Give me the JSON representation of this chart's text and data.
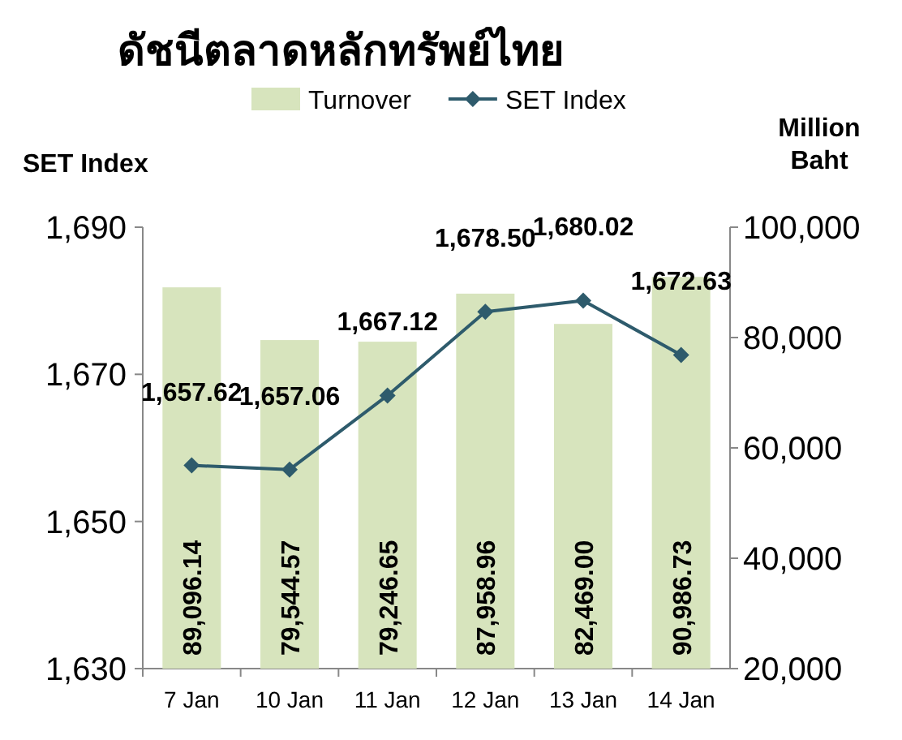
{
  "chart_data": {
    "type": "bar",
    "title": "ดัชนีตลาดหลักทรัพย์ไทย",
    "ylabel": "SET Index",
    "y2label": "Million Baht",
    "legend": "top",
    "grid": false,
    "categories": [
      "7 Jan",
      "10 Jan",
      "11 Jan",
      "12 Jan",
      "13 Jan",
      "14 Jan"
    ],
    "series": [
      {
        "name": "Turnover",
        "axis": "y2",
        "color": "#d7e4bd",
        "values": [
          89096.14,
          79544.57,
          79246.65,
          87958.96,
          82469.0,
          90986.73
        ],
        "value_labels": [
          "89,096.14",
          "79,544.57",
          "79,246.65",
          "87,958.96",
          "82,469.00",
          "90,986.73"
        ]
      },
      {
        "name": "SET Index",
        "type": "line",
        "axis": "y",
        "color": "#2e5b6c",
        "marker": "diamond",
        "values": [
          1657.62,
          1657.06,
          1667.12,
          1678.5,
          1680.02,
          1672.63
        ],
        "value_labels": [
          "1,657.62",
          "1,657.06",
          "1,667.12",
          "1,678.50",
          "1,680.02",
          "1,672.63"
        ]
      }
    ],
    "ylim": [
      1630,
      1690
    ],
    "yticks": [
      {
        "value": 1630,
        "label": "1,630"
      },
      {
        "value": 1650,
        "label": "1,650"
      },
      {
        "value": 1670,
        "label": "1,670"
      },
      {
        "value": 1690,
        "label": "1,690"
      }
    ],
    "y2lim": [
      20000,
      100000
    ],
    "y2ticks": [
      {
        "value": 20000,
        "label": "20,000"
      },
      {
        "value": 40000,
        "label": "40,000"
      },
      {
        "value": 60000,
        "label": "60,000"
      },
      {
        "value": 80000,
        "label": "80,000"
      },
      {
        "value": 100000,
        "label": "100,000"
      }
    ]
  }
}
